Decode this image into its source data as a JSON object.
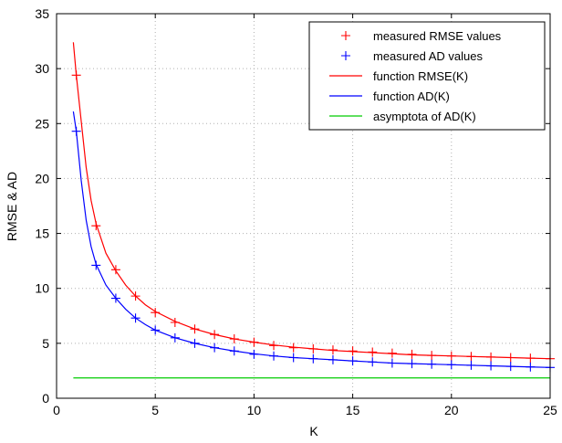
{
  "chart_data": {
    "type": "line",
    "xlabel": "K",
    "ylabel": "RMSE & AD",
    "xlim": [
      0,
      25
    ],
    "ylim": [
      0,
      35
    ],
    "x_ticks": [
      0,
      5,
      10,
      15,
      20,
      25
    ],
    "y_ticks": [
      0,
      5,
      10,
      15,
      20,
      25,
      30,
      35
    ],
    "grid": true,
    "legend_position": "top-right",
    "series": [
      {
        "name": "measured RMSE values",
        "kind": "marker",
        "marker": "plus",
        "color": "#ff0000",
        "x": [
          1,
          2,
          3,
          4,
          5,
          6,
          7,
          8,
          9,
          10,
          11,
          12,
          13,
          14,
          15,
          16,
          17,
          18,
          19,
          20,
          21,
          22,
          23,
          24,
          25
        ],
        "y": [
          29.4,
          15.7,
          11.7,
          9.3,
          7.8,
          6.9,
          6.3,
          5.8,
          5.4,
          5.1,
          4.8,
          4.6,
          4.5,
          4.4,
          4.3,
          4.2,
          4.1,
          4.0,
          3.9,
          3.85,
          3.8,
          3.75,
          3.7,
          3.65,
          3.6
        ]
      },
      {
        "name": "measured AD values",
        "kind": "marker",
        "marker": "plus",
        "color": "#0000ff",
        "x": [
          1,
          2,
          3,
          4,
          5,
          6,
          7,
          8,
          9,
          10,
          11,
          12,
          13,
          14,
          15,
          16,
          17,
          18,
          19,
          20,
          21,
          22,
          23,
          24,
          25
        ],
        "y": [
          24.3,
          12.1,
          9.1,
          7.3,
          6.2,
          5.5,
          5.0,
          4.6,
          4.3,
          4.0,
          3.85,
          3.7,
          3.6,
          3.5,
          3.4,
          3.3,
          3.2,
          3.15,
          3.1,
          3.05,
          3.0,
          2.95,
          2.9,
          2.85,
          2.8
        ]
      },
      {
        "name": "function RMSE(K)",
        "kind": "line",
        "color": "#ff0000",
        "x": [
          0.85,
          1,
          1.25,
          1.5,
          1.75,
          2,
          2.5,
          3,
          3.5,
          4,
          4.5,
          5,
          6,
          7,
          8,
          9,
          10,
          11,
          12,
          13,
          14,
          15,
          16,
          17,
          18,
          19,
          20,
          21,
          22,
          23,
          24,
          25
        ],
        "y": [
          32.4,
          29.4,
          25.2,
          21.0,
          18.0,
          15.9,
          13.2,
          11.6,
          10.3,
          9.3,
          8.5,
          7.9,
          7.0,
          6.3,
          5.8,
          5.4,
          5.1,
          4.85,
          4.65,
          4.5,
          4.35,
          4.25,
          4.15,
          4.05,
          3.95,
          3.9,
          3.85,
          3.8,
          3.75,
          3.7,
          3.65,
          3.6
        ]
      },
      {
        "name": "function AD(K)",
        "kind": "line",
        "color": "#0000ff",
        "x": [
          0.85,
          1,
          1.25,
          1.5,
          1.75,
          2,
          2.5,
          3,
          3.5,
          4,
          4.5,
          5,
          6,
          7,
          8,
          9,
          10,
          11,
          12,
          13,
          14,
          15,
          16,
          17,
          18,
          19,
          20,
          21,
          22,
          23,
          24,
          25
        ],
        "y": [
          26.1,
          24.3,
          19.8,
          16.2,
          13.8,
          12.2,
          10.3,
          9.1,
          8.1,
          7.3,
          6.7,
          6.2,
          5.5,
          5.0,
          4.6,
          4.3,
          4.05,
          3.85,
          3.7,
          3.6,
          3.5,
          3.4,
          3.3,
          3.2,
          3.15,
          3.1,
          3.05,
          3.0,
          2.95,
          2.9,
          2.85,
          2.8
        ]
      },
      {
        "name": "asymptota of AD(K)",
        "kind": "line",
        "color": "#00cc00",
        "x": [
          0.85,
          25
        ],
        "y": [
          1.85,
          1.85
        ]
      }
    ]
  }
}
